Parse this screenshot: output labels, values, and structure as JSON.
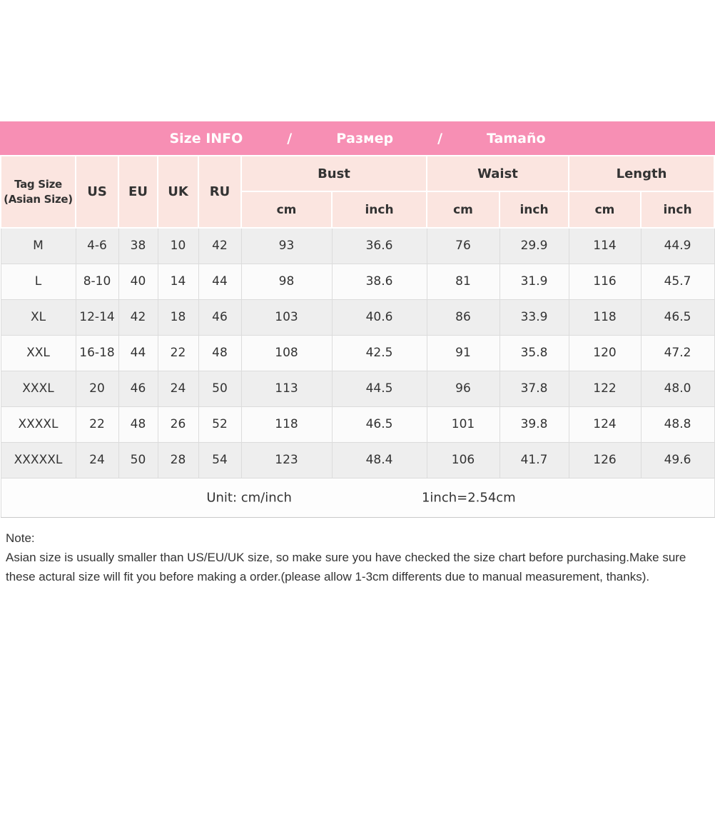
{
  "banner": {
    "title_en": "Size INFO",
    "separator": "/",
    "title_ru": "Размер",
    "title_es": "Tamaño"
  },
  "table": {
    "tag_line1": "Tag Size",
    "tag_line2": "(Asian Size)",
    "size_systems": [
      "US",
      "EU",
      "UK",
      "RU"
    ],
    "groups": [
      "Bust",
      "Waist",
      "Length"
    ],
    "units": [
      "cm",
      "inch"
    ],
    "footer": {
      "unit": "Unit: cm/inch",
      "conversion": "1inch=2.54cm"
    }
  },
  "chart_data": {
    "type": "table",
    "title": "Size INFO / Размер / Tamaño",
    "columns": [
      "Tag Size (Asian Size)",
      "US",
      "EU",
      "UK",
      "RU",
      "Bust cm",
      "Bust inch",
      "Waist cm",
      "Waist inch",
      "Length cm",
      "Length inch"
    ],
    "rows": [
      [
        "M",
        "4-6",
        "38",
        "10",
        "42",
        "93",
        "36.6",
        "76",
        "29.9",
        "114",
        "44.9"
      ],
      [
        "L",
        "8-10",
        "40",
        "14",
        "44",
        "98",
        "38.6",
        "81",
        "31.9",
        "116",
        "45.7"
      ],
      [
        "XL",
        "12-14",
        "42",
        "18",
        "46",
        "103",
        "40.6",
        "86",
        "33.9",
        "118",
        "46.5"
      ],
      [
        "XXL",
        "16-18",
        "44",
        "22",
        "48",
        "108",
        "42.5",
        "91",
        "35.8",
        "120",
        "47.2"
      ],
      [
        "XXXL",
        "20",
        "46",
        "24",
        "50",
        "113",
        "44.5",
        "96",
        "37.8",
        "122",
        "48.0"
      ],
      [
        "XXXXL",
        "22",
        "48",
        "26",
        "52",
        "118",
        "46.5",
        "101",
        "39.8",
        "124",
        "48.8"
      ],
      [
        "XXXXXL",
        "24",
        "50",
        "28",
        "54",
        "123",
        "48.4",
        "106",
        "41.7",
        "126",
        "49.6"
      ]
    ]
  },
  "note": {
    "label": "Note:",
    "line1": "Asian size is usually smaller than US/EU/UK size, so make sure you have checked the size chart before purchasing.Make sure",
    "line2": "these actural size will fit you before making a order.(please allow 1-3cm differents due to manual measurement, thanks)."
  },
  "colors": {
    "banner_pink": "#f78fb4",
    "header_pink": "#fbe5e0",
    "row_alt": "#eeeeee",
    "row_base": "#fbfbfb",
    "grid_line": "#dcdcdc",
    "text": "#333333",
    "banner_text": "#ffffff"
  }
}
